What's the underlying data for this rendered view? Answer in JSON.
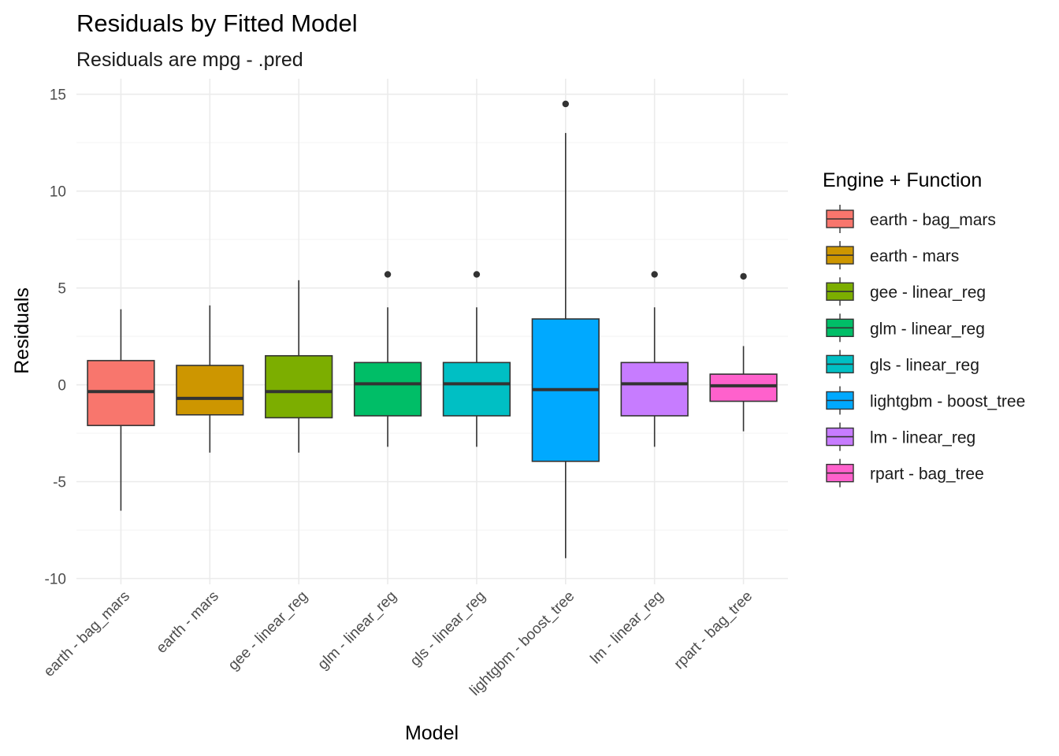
{
  "chart_data": {
    "type": "boxplot",
    "title": "Residuals by Fitted Model",
    "subtitle": "Residuals are mpg - .pred",
    "xlabel": "Model",
    "ylabel": "Residuals",
    "ylim": [
      -10.3,
      15.8
    ],
    "y_ticks": [
      -10,
      -5,
      0,
      5,
      10,
      15
    ],
    "y_tick_labels": [
      "-10",
      "-5",
      "0",
      "5",
      "10",
      "15"
    ],
    "grid": true,
    "legend_title": "Engine + Function",
    "legend_position": "right",
    "categories": [
      "earth - bag_mars",
      "earth - mars",
      "gee - linear_reg",
      "glm - linear_reg",
      "gls - linear_reg",
      "lightgbm - boost_tree",
      "lm - linear_reg",
      "rpart - bag_tree"
    ],
    "series": [
      {
        "name": "earth - bag_mars",
        "color": "#F8766D",
        "whisker_low": -6.5,
        "q1": -2.1,
        "median": -0.35,
        "q3": 1.25,
        "whisker_high": 3.9,
        "outliers": []
      },
      {
        "name": "earth - mars",
        "color": "#CD9600",
        "whisker_low": -3.5,
        "q1": -1.55,
        "median": -0.7,
        "q3": 1.0,
        "whisker_high": 4.1,
        "outliers": []
      },
      {
        "name": "gee - linear_reg",
        "color": "#7CAE00",
        "whisker_low": -3.5,
        "q1": -1.7,
        "median": -0.35,
        "q3": 1.5,
        "whisker_high": 5.4,
        "outliers": []
      },
      {
        "name": "glm - linear_reg",
        "color": "#00BE67",
        "whisker_low": -3.2,
        "q1": -1.6,
        "median": 0.05,
        "q3": 1.15,
        "whisker_high": 4.0,
        "outliers": [
          5.7
        ]
      },
      {
        "name": "gls - linear_reg",
        "color": "#00BFC4",
        "whisker_low": -3.2,
        "q1": -1.6,
        "median": 0.05,
        "q3": 1.15,
        "whisker_high": 4.0,
        "outliers": [
          5.7
        ]
      },
      {
        "name": "lightgbm - boost_tree",
        "color": "#00A9FF",
        "whisker_low": -8.95,
        "q1": -3.95,
        "median": -0.25,
        "q3": 3.4,
        "whisker_high": 13.0,
        "outliers": [
          14.5
        ]
      },
      {
        "name": "lm - linear_reg",
        "color": "#C77CFF",
        "whisker_low": -3.2,
        "q1": -1.6,
        "median": 0.05,
        "q3": 1.15,
        "whisker_high": 4.0,
        "outliers": [
          5.7
        ]
      },
      {
        "name": "rpart - bag_tree",
        "color": "#FF61CC",
        "whisker_low": -2.4,
        "q1": -0.85,
        "median": -0.05,
        "q3": 0.55,
        "whisker_high": 2.0,
        "outliers": [
          5.6
        ]
      }
    ]
  }
}
